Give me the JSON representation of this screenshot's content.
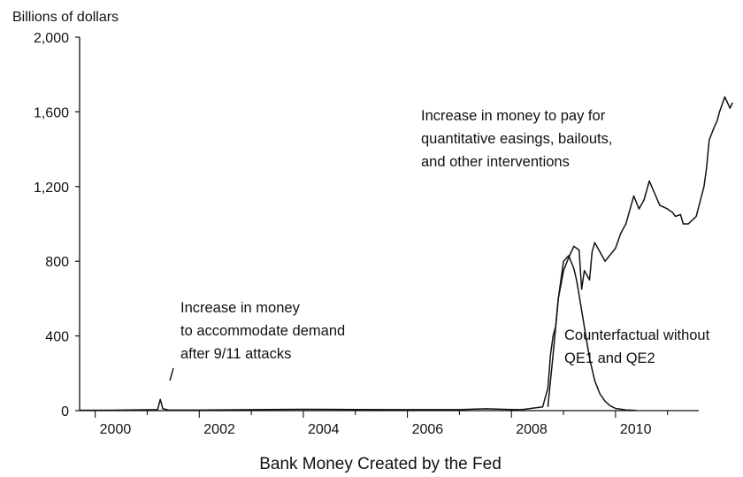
{
  "chart_data": {
    "type": "line",
    "title": "",
    "caption": "Bank Money Created by the Fed",
    "ylabel": "Billions of dollars",
    "xlabel": "",
    "xlim": [
      1999.7,
      2011.6
    ],
    "ylim": [
      0,
      2000
    ],
    "x_ticks": [
      2000,
      2002,
      2004,
      2006,
      2008,
      2010
    ],
    "x_tick_labels": [
      "2000",
      "2002",
      "2004",
      "2006",
      "2008",
      "2010"
    ],
    "y_ticks": [
      0,
      400,
      800,
      1200,
      1600,
      2000
    ],
    "y_tick_labels": [
      "0",
      "400",
      "800",
      "1,200",
      "1,600",
      "2,000"
    ],
    "grid": false,
    "series": [
      {
        "name": "",
        "x": [
          1999.7,
          2000.5,
          2001.2,
          2001.25,
          2001.3,
          2001.4,
          2002.0,
          2003.0,
          2004.0,
          2005.0,
          2006.0,
          2007.0,
          2007.5,
          2008.0,
          2008.2,
          2008.6,
          2008.7,
          2008.75,
          2008.8,
          2008.85,
          2008.9,
          2009.0,
          2009.1,
          2009.2,
          2009.3,
          2009.35,
          2009.4,
          2009.5,
          2009.55,
          2009.6,
          2009.8,
          2010.0,
          2010.1,
          2010.2,
          2010.25,
          2010.35,
          2010.45,
          2010.55,
          2010.65,
          2010.85,
          2011.0,
          2011.1,
          2011.15,
          2011.25,
          2011.3,
          2011.4,
          2011.55,
          2011.7,
          2011.75,
          2011.8,
          2011.9,
          2011.95,
          2012.0,
          2012.1,
          2012.2,
          2012.25
        ],
        "y": [
          2,
          3,
          5,
          60,
          10,
          4,
          3,
          5,
          7,
          6,
          5,
          5,
          10,
          6,
          5,
          20,
          120,
          300,
          400,
          450,
          600,
          750,
          820,
          880,
          860,
          650,
          750,
          700,
          850,
          900,
          800,
          870,
          950,
          1000,
          1050,
          1150,
          1080,
          1130,
          1230,
          1100,
          1080,
          1060,
          1040,
          1050,
          1000,
          1000,
          1040,
          1200,
          1300,
          1450,
          1520,
          1550,
          1600,
          1680,
          1620,
          1650
        ]
      },
      {
        "name": "",
        "x": [
          2008.7,
          2008.8,
          2008.9,
          2009.0,
          2009.1,
          2009.2,
          2009.25,
          2009.3,
          2009.4,
          2009.5,
          2009.6,
          2009.7,
          2009.8,
          2009.9,
          2010.0,
          2010.2,
          2010.4
        ],
        "y": [
          20,
          300,
          600,
          800,
          830,
          760,
          700,
          620,
          450,
          280,
          160,
          90,
          50,
          25,
          12,
          4,
          1
        ]
      }
    ],
    "annotations": [
      {
        "lines": [
          "Increase in money",
          "to accommodate demand",
          "after 9/11 attacks"
        ]
      },
      {
        "lines": [
          "Increase in money to pay for",
          "quantitative easings, bailouts,",
          "and other interventions"
        ]
      },
      {
        "lines": [
          "Counterfactual without",
          "QE1 and QE2"
        ]
      }
    ]
  }
}
